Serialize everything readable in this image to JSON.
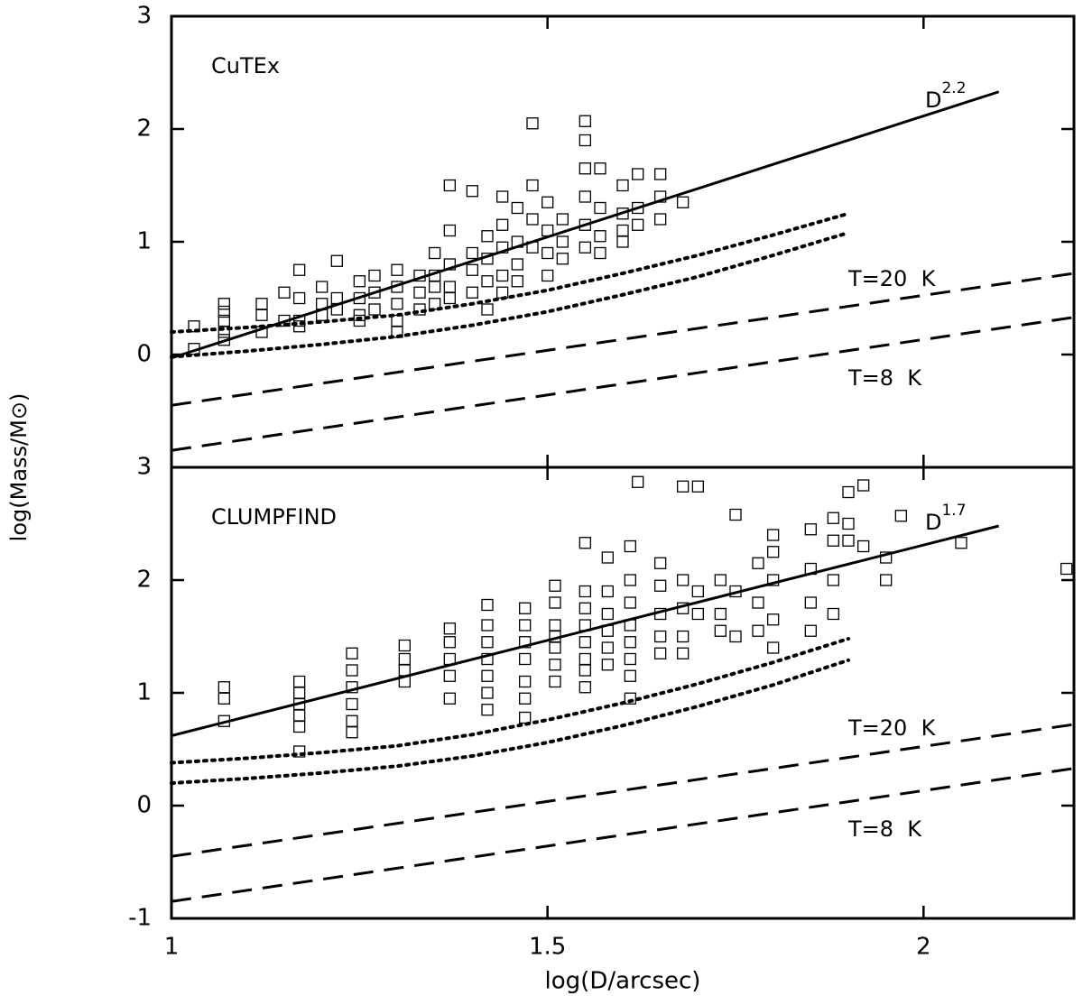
{
  "chart_data": [
    {
      "type": "scatter",
      "label": "CuTEx",
      "xlim": [
        1,
        2.2
      ],
      "xticks": [
        1,
        1.5,
        2
      ],
      "ylim": [
        -1,
        3
      ],
      "yticks": [
        0,
        1,
        2,
        3
      ],
      "x": [
        1.03,
        1.03,
        1.07,
        1.07,
        1.07,
        1.07,
        1.07,
        1.12,
        1.12,
        1.12,
        1.15,
        1.15,
        1.17,
        1.17,
        1.17,
        1.17,
        1.2,
        1.2,
        1.2,
        1.22,
        1.22,
        1.22,
        1.25,
        1.25,
        1.25,
        1.25,
        1.27,
        1.27,
        1.27,
        1.3,
        1.3,
        1.3,
        1.3,
        1.3,
        1.33,
        1.33,
        1.33,
        1.35,
        1.35,
        1.35,
        1.35,
        1.37,
        1.37,
        1.37,
        1.37,
        1.37,
        1.4,
        1.4,
        1.4,
        1.4,
        1.42,
        1.42,
        1.42,
        1.42,
        1.44,
        1.44,
        1.44,
        1.44,
        1.44,
        1.46,
        1.46,
        1.46,
        1.46,
        1.48,
        1.48,
        1.48,
        1.48,
        1.5,
        1.5,
        1.5,
        1.5,
        1.52,
        1.52,
        1.52,
        1.55,
        1.55,
        1.55,
        1.55,
        1.55,
        1.55,
        1.57,
        1.57,
        1.57,
        1.57,
        1.6,
        1.6,
        1.6,
        1.6,
        1.62,
        1.62,
        1.62,
        1.65,
        1.65,
        1.65,
        1.68
      ],
      "values": [
        0.25,
        0.05,
        0.45,
        0.38,
        0.3,
        0.2,
        0.13,
        0.45,
        0.35,
        0.2,
        0.55,
        0.3,
        0.75,
        0.5,
        0.3,
        0.25,
        0.6,
        0.45,
        0.35,
        0.83,
        0.5,
        0.4,
        0.65,
        0.5,
        0.35,
        0.3,
        0.7,
        0.55,
        0.4,
        0.75,
        0.6,
        0.45,
        0.3,
        0.2,
        0.7,
        0.55,
        0.4,
        0.9,
        0.7,
        0.6,
        0.45,
        1.5,
        1.1,
        0.8,
        0.6,
        0.5,
        1.45,
        0.9,
        0.75,
        0.55,
        1.05,
        0.85,
        0.65,
        0.4,
        1.4,
        1.15,
        0.95,
        0.7,
        0.55,
        1.3,
        1.0,
        0.8,
        0.65,
        2.05,
        1.5,
        1.2,
        0.95,
        1.35,
        1.1,
        0.9,
        0.7,
        1.2,
        1.0,
        0.85,
        2.07,
        1.9,
        1.65,
        1.4,
        1.15,
        0.95,
        1.65,
        1.3,
        1.05,
        0.9,
        1.5,
        1.25,
        1.1,
        1.0,
        1.6,
        1.3,
        1.15,
        1.6,
        1.4,
        1.2,
        1.35
      ],
      "lines": [
        {
          "style": "solid",
          "x": [
            1,
            2.1
          ],
          "values": [
            -0.03,
            2.33
          ]
        },
        {
          "style": "dotted",
          "x": [
            1,
            1.1,
            1.2,
            1.3,
            1.4,
            1.5,
            1.6,
            1.7,
            1.8,
            1.9
          ],
          "values": [
            0.2,
            0.24,
            0.29,
            0.35,
            0.45,
            0.57,
            0.72,
            0.88,
            1.06,
            1.25
          ]
        },
        {
          "style": "dotted",
          "x": [
            1,
            1.1,
            1.2,
            1.3,
            1.4,
            1.5,
            1.6,
            1.7,
            1.8,
            1.9
          ],
          "values": [
            -0.02,
            0.03,
            0.09,
            0.16,
            0.26,
            0.38,
            0.53,
            0.69,
            0.88,
            1.08
          ]
        },
        {
          "style": "dashed",
          "x": [
            1,
            2.2
          ],
          "values": [
            -0.45,
            0.72
          ]
        },
        {
          "style": "dashed",
          "x": [
            1,
            2.2
          ],
          "values": [
            -0.85,
            0.33
          ]
        }
      ],
      "fit_label": {
        "base": "D",
        "exponent": "2.2"
      },
      "annotations": [
        "T=20  K",
        "T=8  K"
      ]
    },
    {
      "type": "scatter",
      "label": "CLUMPFIND",
      "xlabel": "log(D/arcsec)",
      "ylabel": "log(Mass/M⊙)",
      "xlim": [
        1,
        2.2
      ],
      "xticks": [
        1,
        1.5,
        2
      ],
      "ylim": [
        -1,
        3
      ],
      "yticks": [
        -1,
        0,
        1,
        2,
        3
      ],
      "x": [
        1.07,
        1.07,
        1.07,
        1.17,
        1.17,
        1.17,
        1.17,
        1.17,
        1.17,
        1.24,
        1.24,
        1.24,
        1.24,
        1.24,
        1.24,
        1.31,
        1.31,
        1.31,
        1.31,
        1.37,
        1.37,
        1.37,
        1.37,
        1.37,
        1.42,
        1.42,
        1.42,
        1.42,
        1.42,
        1.42,
        1.42,
        1.47,
        1.47,
        1.47,
        1.47,
        1.47,
        1.47,
        1.47,
        1.51,
        1.51,
        1.51,
        1.51,
        1.51,
        1.51,
        1.51,
        1.55,
        1.55,
        1.55,
        1.55,
        1.55,
        1.55,
        1.55,
        1.55,
        1.58,
        1.58,
        1.58,
        1.58,
        1.58,
        1.58,
        1.61,
        1.61,
        1.61,
        1.61,
        1.61,
        1.61,
        1.61,
        1.61,
        1.62,
        1.65,
        1.65,
        1.65,
        1.65,
        1.65,
        1.68,
        1.68,
        1.68,
        1.68,
        1.68,
        1.7,
        1.7,
        1.7,
        1.73,
        1.73,
        1.73,
        1.75,
        1.75,
        1.75,
        1.78,
        1.78,
        1.78,
        1.8,
        1.8,
        1.8,
        1.8,
        1.8,
        1.85,
        1.85,
        1.85,
        1.85,
        1.88,
        1.88,
        1.88,
        1.88,
        1.9,
        1.9,
        1.9,
        1.92,
        1.92,
        1.95,
        1.95,
        1.97,
        2.05,
        2.19
      ],
      "values": [
        1.05,
        0.95,
        0.75,
        1.1,
        1.0,
        0.9,
        0.8,
        0.7,
        0.48,
        1.35,
        1.2,
        1.05,
        0.9,
        0.75,
        0.65,
        1.42,
        1.3,
        1.2,
        1.1,
        1.57,
        1.45,
        1.3,
        1.15,
        0.95,
        1.78,
        1.6,
        1.45,
        1.3,
        1.15,
        1.0,
        0.85,
        1.75,
        1.6,
        1.45,
        1.3,
        1.1,
        0.95,
        0.78,
        1.95,
        1.8,
        1.6,
        1.5,
        1.4,
        1.25,
        1.1,
        2.33,
        1.9,
        1.75,
        1.6,
        1.45,
        1.3,
        1.2,
        1.05,
        2.2,
        1.9,
        1.7,
        1.55,
        1.4,
        1.25,
        2.3,
        2.0,
        1.8,
        1.6,
        1.45,
        1.3,
        1.15,
        0.95,
        2.87,
        2.15,
        1.95,
        1.7,
        1.5,
        1.35,
        2.83,
        2.0,
        1.75,
        1.5,
        1.35,
        2.83,
        1.9,
        1.7,
        2.0,
        1.7,
        1.55,
        2.58,
        1.9,
        1.5,
        2.15,
        1.8,
        1.55,
        2.4,
        2.25,
        2.0,
        1.65,
        1.4,
        2.45,
        2.1,
        1.8,
        1.55,
        2.55,
        2.35,
        2.0,
        1.7,
        2.78,
        2.5,
        2.35,
        2.84,
        2.3,
        2.2,
        2.0,
        2.57,
        2.33,
        2.1
      ],
      "lines": [
        {
          "style": "solid",
          "x": [
            1,
            2.1
          ],
          "values": [
            0.62,
            2.48
          ]
        },
        {
          "style": "dotted",
          "x": [
            1,
            1.1,
            1.2,
            1.3,
            1.4,
            1.5,
            1.6,
            1.7,
            1.8,
            1.9
          ],
          "values": [
            0.38,
            0.42,
            0.47,
            0.53,
            0.63,
            0.76,
            0.91,
            1.08,
            1.27,
            1.48
          ]
        },
        {
          "style": "dotted",
          "x": [
            1,
            1.1,
            1.2,
            1.3,
            1.4,
            1.5,
            1.6,
            1.7,
            1.8,
            1.9
          ],
          "values": [
            0.2,
            0.24,
            0.29,
            0.35,
            0.44,
            0.56,
            0.71,
            0.88,
            1.07,
            1.29
          ]
        },
        {
          "style": "dashed",
          "x": [
            1,
            2.2
          ],
          "values": [
            -0.45,
            0.72
          ]
        },
        {
          "style": "dashed",
          "x": [
            1,
            2.2
          ],
          "values": [
            -0.85,
            0.33
          ]
        }
      ],
      "fit_label": {
        "base": "D",
        "exponent": "1.7"
      },
      "annotations": [
        "T=20  K",
        "T=8  K"
      ]
    }
  ]
}
